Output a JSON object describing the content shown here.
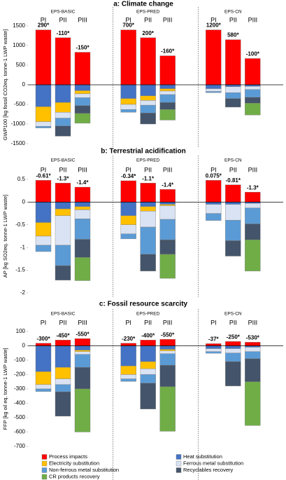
{
  "chart_data": {
    "type": "stacked_bar",
    "groups": [
      "EPS-BASIC",
      "EPS-PRED",
      "EPS-CN"
    ],
    "categories": [
      "PI",
      "PII",
      "PIII",
      "PI",
      "PII",
      "PIII",
      "PI",
      "PII",
      "PIII"
    ],
    "series": [
      {
        "name": "Process impacts",
        "color": "#ff0000"
      },
      {
        "name": "Heat substitution",
        "color": "#4472c4"
      },
      {
        "name": "Electricity substitution",
        "color": "#ffc000"
      },
      {
        "name": "Ferrous metal substitution",
        "color": "#dae3f3"
      },
      {
        "name": "Non-ferrous metal substitution",
        "color": "#5b9bd5"
      },
      {
        "name": "Recyclables recovery",
        "color": "#44546a"
      },
      {
        "name": "CR products recovery",
        "color": "#70ad47"
      }
    ],
    "panels": [
      {
        "title": "a: Climate change",
        "ylabel": "GWP100 [kg fossil CO2eq. tonne-1 LWP waste]",
        "ylim": [
          -1500,
          1500
        ],
        "yticks": [
          -1500,
          -1000,
          -500,
          0,
          500,
          1000,
          1500
        ],
        "values": [
          [
            1400,
            1200,
            830,
            1400,
            1200,
            740,
            1400,
            1150,
            670
          ],
          [
            -560,
            -450,
            -150,
            -350,
            -280,
            -100,
            -100,
            -50,
            -40
          ],
          [
            -380,
            -250,
            -80,
            -150,
            -120,
            -60,
            0,
            0,
            0
          ],
          [
            -120,
            -150,
            -100,
            -130,
            -120,
            -90,
            -70,
            -150,
            -80
          ],
          [
            -40,
            -200,
            -200,
            -70,
            -200,
            -200,
            -30,
            -150,
            -200
          ],
          [
            0,
            -260,
            -200,
            0,
            -280,
            -180,
            0,
            -220,
            -150
          ],
          [
            0,
            0,
            -250,
            0,
            0,
            -270,
            0,
            0,
            -300
          ]
        ],
        "totals": [
          290,
          -110,
          -150,
          700,
          200,
          -160,
          1200,
          580,
          -100
        ],
        "total_labels": [
          "290*",
          "-110*",
          "-150*",
          "700*",
          "200*",
          "-160*",
          "1200*",
          "580*",
          "-100*"
        ]
      },
      {
        "title": "b: Terrestrial acidification",
        "ylabel": "AP [kg SO2eq. tonne-1 LWP waste]",
        "ylim": [
          -2,
          0.5
        ],
        "yticks": [
          -2,
          -1.5,
          -1,
          -0.5,
          0,
          0.5
        ],
        "values": [
          [
            0.48,
            0.42,
            0.33,
            0.47,
            0.42,
            0.28,
            0.48,
            0.38,
            0.22
          ],
          [
            -0.45,
            -0.15,
            -0.1,
            -0.3,
            -0.1,
            -0.05,
            -0.05,
            -0.05,
            -0.03
          ],
          [
            -0.3,
            -0.15,
            -0.07,
            -0.2,
            -0.1,
            -0.03,
            0,
            0,
            0
          ],
          [
            -0.2,
            -0.65,
            -0.2,
            -0.2,
            -0.35,
            -0.3,
            -0.2,
            -0.35,
            -0.1
          ],
          [
            -0.14,
            -0.45,
            -0.45,
            -0.11,
            -0.6,
            -0.45,
            -0.155,
            -0.45,
            -0.35
          ],
          [
            0,
            -0.32,
            -0.4,
            0,
            -0.37,
            -0.32,
            0,
            -0.34,
            -0.35
          ],
          [
            0,
            0,
            -0.51,
            0,
            0,
            -0.53,
            0,
            0,
            -0.69
          ]
        ],
        "totals": [
          -0.61,
          -1.3,
          -1.4,
          -0.34,
          -1.1,
          -1.4,
          0.075,
          -0.81,
          -1.3
        ],
        "total_labels": [
          "-0.61*",
          "-1.3*",
          "-1.4*",
          "-0.34*",
          "-1.1*",
          "-1.4*",
          "0.075*",
          "-0.81*",
          "-1.3*"
        ]
      },
      {
        "title": "c: Fossil resource scarcity",
        "ylabel": "FFP [kg oil eq. tonne-1 LWP waste]",
        "ylim": [
          -700,
          100
        ],
        "yticks": [
          -700,
          -600,
          -500,
          -400,
          -300,
          -200,
          -100,
          0,
          100
        ],
        "values": [
          [
            18,
            40,
            50,
            18,
            40,
            45,
            15,
            30,
            25
          ],
          [
            -180,
            -150,
            -30,
            -140,
            -110,
            -25,
            -20,
            -20,
            -10
          ],
          [
            -90,
            -80,
            -10,
            -60,
            -50,
            -10,
            0,
            0,
            0
          ],
          [
            -30,
            -40,
            -20,
            -30,
            -40,
            -20,
            -20,
            -30,
            -30
          ],
          [
            -18,
            -50,
            -90,
            -18,
            -60,
            -80,
            -12,
            -60,
            -50
          ],
          [
            0,
            -170,
            -150,
            0,
            -180,
            -150,
            0,
            -170,
            -160
          ],
          [
            0,
            0,
            -300,
            0,
            0,
            -310,
            0,
            0,
            -305
          ]
        ],
        "totals": [
          -300,
          -450,
          -550,
          -230,
          -400,
          -550,
          -37,
          -250,
          -530
        ],
        "total_labels": [
          "-300*",
          "-450*",
          "-550*",
          "-230*",
          "-400*",
          "-550*",
          "-37*",
          "-250*",
          "-530*"
        ]
      }
    ]
  }
}
